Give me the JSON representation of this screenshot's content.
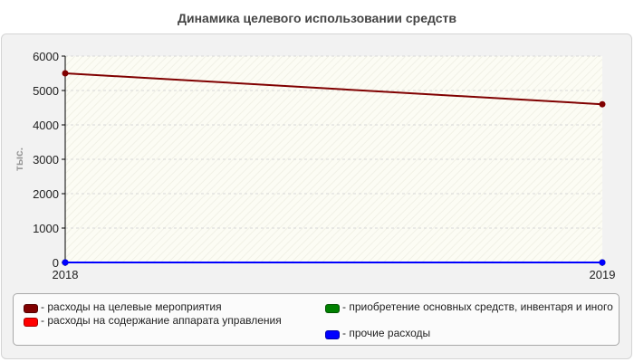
{
  "title": "Динамика целевого использовании средств",
  "chart_data": {
    "type": "line",
    "title": "Динамика целевого использовании средств",
    "ylabel": "тыс.",
    "xlabel": "",
    "x": [
      "2018",
      "2019"
    ],
    "ylim": [
      0,
      6000
    ],
    "yticks": [
      0,
      1000,
      2000,
      3000,
      4000,
      5000,
      6000
    ],
    "grid": true,
    "legend_position": "bottom",
    "series": [
      {
        "name": "расходы на целевые мероприятия",
        "values": [
          5500,
          4600
        ],
        "color": "#800000"
      },
      {
        "name": "расходы на содержание аппарата управления",
        "values": [
          0,
          0
        ],
        "color": "#ff0000"
      },
      {
        "name": "приобретение основных средств, инвентаря и иного",
        "values": [
          0,
          0
        ],
        "color": "#008000"
      },
      {
        "name": "прочие расходы",
        "values": [
          0,
          0
        ],
        "color": "#0000ff"
      }
    ]
  },
  "legend": {
    "prefix": "- ",
    "items": [
      {
        "label": "расходы на целевые мероприятия",
        "color": "#800000"
      },
      {
        "label": "расходы на содержание аппарата управления",
        "color": "#ff0000"
      },
      {
        "label": "приобретение основных средств, инвентаря и иного",
        "color": "#008000"
      },
      {
        "label": "прочие расходы",
        "color": "#0000ff"
      }
    ]
  }
}
